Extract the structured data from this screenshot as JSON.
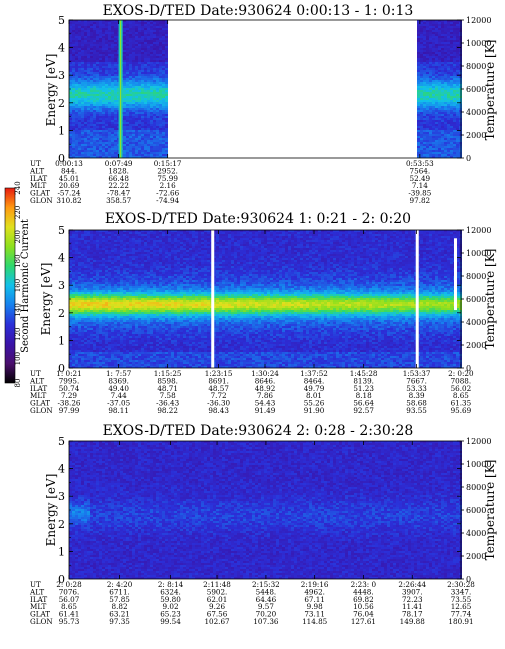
{
  "chart_data": [
    {
      "type": "heatmap",
      "title": "EXOS-D/TED   Date:930624  0:00:13 - 1: 0:13",
      "ylabel": "Energy [eV]",
      "y2label": "Temperature [K]",
      "ylim": [
        0,
        5
      ],
      "y2lim": [
        0,
        12000
      ],
      "yticks": [
        0,
        1,
        2,
        3,
        4,
        5
      ],
      "y2ticks": [
        0,
        2000,
        4000,
        6000,
        8000,
        10000,
        12000
      ],
      "data_segments": [
        {
          "from_minutes": 0.0,
          "to_minutes": 15.1,
          "mode": "dense"
        },
        {
          "from_minutes": 53.4,
          "to_minutes": 60.0,
          "mode": "dense"
        }
      ],
      "table": {
        "row_labels": [
          "UT",
          "ALT",
          "ILAT",
          "MLT",
          "GLAT",
          "GLON"
        ],
        "columns": [
          {
            "t": 0.0,
            "vals": [
              "0:00:13",
              "844.",
              "45.01",
              "20.69",
              "-57.24",
              "310.82"
            ]
          },
          {
            "t": 7.6,
            "vals": [
              "0:07:49",
              "1828.",
              "66.48",
              "22.22",
              "-78.47",
              "358.57"
            ]
          },
          {
            "t": 15.1,
            "vals": [
              "0:15:17",
              "2952.",
              "75.99",
              "2.16",
              "-72.66",
              "-74.94"
            ]
          },
          {
            "t": 53.7,
            "vals": [
              "0:53:53",
              "7564.",
              "52.49",
              "7.14",
              "-39.85",
              "97.82"
            ]
          }
        ]
      },
      "xrange_minutes": [
        0,
        60
      ]
    },
    {
      "type": "heatmap",
      "title": "EXOS-D/TED   Date:930624  1: 0:21 - 2: 0:20",
      "ylabel": "Energy [eV]",
      "y2label": "Temperature [K]",
      "ylim": [
        0,
        5
      ],
      "y2lim": [
        0,
        12000
      ],
      "yticks": [
        0,
        1,
        2,
        3,
        4,
        5
      ],
      "y2ticks": [
        0,
        2000,
        4000,
        6000,
        8000,
        10000,
        12000
      ],
      "table": {
        "row_labels": [
          "UT",
          "ALT",
          "ILAT",
          "MLT",
          "GLAT",
          "GLON"
        ],
        "columns": [
          {
            "t": 0.0,
            "vals": [
              "1: 0:21",
              "7995.",
              "50.74",
              "7.29",
              "-38.26",
              "97.99"
            ]
          },
          {
            "t": 7.6,
            "vals": [
              "1: 7:57",
              "8369.",
              "49.40",
              "7.44",
              "-37.05",
              "98.11"
            ]
          },
          {
            "t": 15.1,
            "vals": [
              "1:15:25",
              "8598.",
              "48.71",
              "7.58",
              "-36.43",
              "98.22"
            ]
          },
          {
            "t": 22.9,
            "vals": [
              "1:23:15",
              "8691.",
              "48.57",
              "7.72",
              "-36.30",
              "98.43"
            ]
          },
          {
            "t": 30.0,
            "vals": [
              "1:30:24",
              "8646.",
              "48.92",
              "7.86",
              "54.43",
              "91.49"
            ]
          },
          {
            "t": 37.5,
            "vals": [
              "1:37:52",
              "8464.",
              "49.79",
              "8.01",
              "55.26",
              "91.90"
            ]
          },
          {
            "t": 45.1,
            "vals": [
              "1:45:28",
              "8139.",
              "51.23",
              "8.18",
              "56.64",
              "92.57"
            ]
          },
          {
            "t": 53.2,
            "vals": [
              "1:53:37",
              "7667.",
              "53.33",
              "8.39",
              "58.68",
              "93.55"
            ]
          },
          {
            "t": 59.98,
            "vals": [
              "2: 0:20",
              "7088.",
              "56.02",
              "8.65",
              "61.35",
              "95.69"
            ]
          }
        ]
      },
      "xrange_minutes": [
        0,
        60
      ]
    },
    {
      "type": "heatmap",
      "title": "EXOS-D/TED   Date:930624  2: 0:28 - 2:30:28",
      "ylabel": "Energy [eV]",
      "y2label": "Temperature [K]",
      "ylim": [
        0,
        5
      ],
      "y2lim": [
        0,
        12000
      ],
      "yticks": [
        0,
        1,
        2,
        3,
        4,
        5
      ],
      "y2ticks": [
        0,
        2000,
        4000,
        6000,
        8000,
        10000,
        12000
      ],
      "table": {
        "row_labels": [
          "UT",
          "ALT",
          "ILAT",
          "MLT",
          "GLAT",
          "GLON"
        ],
        "columns": [
          {
            "t": 0.0,
            "vals": [
              "2: 0:28",
              "7076.",
              "56.07",
              "8.65",
              "61.41",
              "95.73"
            ]
          },
          {
            "t": 3.87,
            "vals": [
              "2: 4:20",
              "6711.",
              "57.85",
              "8.82",
              "63.21",
              "97.35"
            ]
          },
          {
            "t": 7.77,
            "vals": [
              "2: 8:14",
              "6324.",
              "59.80",
              "9.02",
              "65.23",
              "99.54"
            ]
          },
          {
            "t": 11.33,
            "vals": [
              "2:11:48",
              "5902.",
              "62.01",
              "9.26",
              "67.56",
              "102.67"
            ]
          },
          {
            "t": 15.07,
            "vals": [
              "2:15:32",
              "5448.",
              "64.46",
              "9.57",
              "70.20",
              "107.36"
            ]
          },
          {
            "t": 18.8,
            "vals": [
              "2:19:16",
              "4962.",
              "67.11",
              "9.98",
              "73.11",
              "114.85"
            ]
          },
          {
            "t": 22.53,
            "vals": [
              "2:23: 0",
              "4448.",
              "69.82",
              "10.56",
              "76.04",
              "127.61"
            ]
          },
          {
            "t": 26.27,
            "vals": [
              "2:26:44",
              "3907.",
              "72.23",
              "11.41",
              "78.17",
              "149.88"
            ]
          },
          {
            "t": 30.0,
            "vals": [
              "2:30:28",
              "3347.",
              "73.55",
              "12.65",
              "77.74",
              "180.91"
            ]
          }
        ]
      },
      "xrange_minutes": [
        0,
        30
      ]
    }
  ],
  "colorbar": {
    "label": "Second Harmonic Current",
    "min": 80,
    "max": 240,
    "ticks": [
      80,
      100,
      120,
      140,
      160,
      180,
      200,
      220,
      240
    ],
    "colors": [
      "#000000",
      "#4b0f6e",
      "#3a13a8",
      "#2b2fd8",
      "#1780ee",
      "#12c0ea",
      "#2fd86e",
      "#8ee01e",
      "#e0e01e",
      "#ff9a12",
      "#e81b10"
    ]
  }
}
